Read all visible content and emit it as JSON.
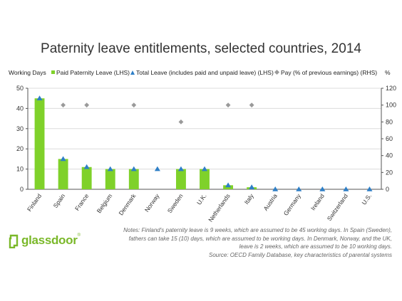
{
  "title": "Paternity leave entitlements, selected countries, 2014",
  "legend": {
    "left_axis_label": "Working Days",
    "right_axis_label": "%",
    "items": [
      {
        "label": "Paid Paternity Leave (LHS)",
        "color": "#7fd12a",
        "marker": "square"
      },
      {
        "label": "Total Leave (includes paid and unpaid leave) (LHS)",
        "color": "#2e7fc7",
        "marker": "triangle"
      },
      {
        "label": "Pay (% of previous earnings) (RHS)",
        "color": "#9a9a9a",
        "marker": "diamond"
      }
    ]
  },
  "chart_data": {
    "type": "bar",
    "title": "Paternity leave entitlements, selected countries, 2014",
    "ylabel": "Working Days",
    "y2label": "%",
    "ylim": [
      0,
      50
    ],
    "y2lim": [
      0,
      120
    ],
    "yticks": [
      0,
      10,
      20,
      30,
      40,
      50
    ],
    "y2ticks": [
      0,
      20,
      40,
      60,
      80,
      100,
      120
    ],
    "grid": true,
    "categories": [
      "Finland",
      "Spain",
      "France",
      "Belgium",
      "Denmark",
      "Norway",
      "Sweden",
      "U.K.",
      "Netherlands",
      "Italy",
      "Austria",
      "Germany",
      "Ireland",
      "Switzerland",
      "U.S."
    ],
    "series": [
      {
        "name": "Paid Paternity Leave (LHS)",
        "type": "bar",
        "axis": "left",
        "color": "#7fd12a",
        "values": [
          45,
          15,
          11,
          10,
          10,
          0,
          10,
          10,
          2,
          1,
          0,
          0,
          0,
          0,
          0
        ]
      },
      {
        "name": "Total Leave (includes paid and unpaid leave) (LHS)",
        "type": "marker",
        "marker": "triangle",
        "axis": "left",
        "color": "#2e7fc7",
        "values": [
          45,
          15,
          11,
          10,
          10,
          10,
          10,
          10,
          2,
          1,
          0,
          0,
          0,
          0,
          0
        ]
      },
      {
        "name": "Pay (% of previous earnings) (RHS)",
        "type": "marker",
        "marker": "diamond",
        "axis": "right",
        "color": "#9a9a9a",
        "values": [
          null,
          100,
          100,
          null,
          100,
          null,
          80,
          null,
          100,
          100,
          null,
          null,
          null,
          null,
          null
        ]
      }
    ]
  },
  "notes": "Notes: Finland's paternity leave is 9 weeks, which are assumed to be 45 working days. In Spain (Sweden), fathers can take 15 (10) days, which are assumed to be working days. In Denmark, Norway, and the UK, leave is 2 weeks, which are assumed to be 10 working days.",
  "source": "Source: OECD Family Database, key characteristics of parental systems",
  "logo": {
    "text": "glassdoor",
    "color": "#7ab829"
  }
}
